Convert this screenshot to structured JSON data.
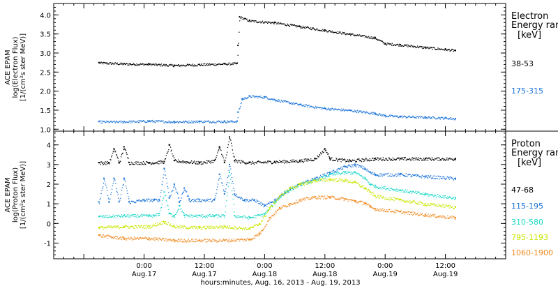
{
  "xaxis": {
    "title": "hours:minutes, Aug. 16, 2013 - Aug. 19, 2013",
    "ticks": [
      {
        "t": 24,
        "time": "0:00",
        "date": "Aug.17"
      },
      {
        "t": 36,
        "time": "12:00",
        "date": "Aug.17"
      },
      {
        "t": 48,
        "time": "0:00",
        "date": "Aug.18"
      },
      {
        "t": 60,
        "time": "12:00",
        "date": "Aug.18"
      },
      {
        "t": 72,
        "time": "0:00",
        "date": "Aug.19"
      },
      {
        "t": 84,
        "time": "12:00",
        "date": "Aug.19"
      }
    ]
  },
  "chart_data": [
    {
      "type": "scatter",
      "panel": "electron",
      "ylabel": [
        "ACE EPAM",
        "log(Electron Flux)",
        "[1/(cm²s ster MeV)]"
      ],
      "ylim": [
        0.95,
        4.3
      ],
      "yticks": [
        1.0,
        1.5,
        2.0,
        2.5,
        3.0,
        3.5,
        4.0
      ],
      "ytick_labels": [
        "1.0",
        "1.5",
        "2.0",
        "2.5",
        "3.0",
        "3.5",
        "4.0"
      ],
      "legend_title": [
        "Electron",
        "Energy ran",
        "[keV]"
      ],
      "series": [
        {
          "name": "38-53",
          "color": "#000000",
          "points": [
            [
              15,
              2.75
            ],
            [
              20,
              2.72
            ],
            [
              25,
              2.71
            ],
            [
              30,
              2.68
            ],
            [
              35,
              2.7
            ],
            [
              40,
              2.72
            ],
            [
              42.5,
              2.73
            ],
            [
              42.7,
              3.2
            ],
            [
              43,
              3.95
            ],
            [
              45,
              3.85
            ],
            [
              50,
              3.8
            ],
            [
              55,
              3.7
            ],
            [
              60,
              3.6
            ],
            [
              65,
              3.5
            ],
            [
              70,
              3.4
            ],
            [
              72,
              3.25
            ],
            [
              75,
              3.22
            ],
            [
              80,
              3.15
            ],
            [
              84,
              3.1
            ],
            [
              86,
              3.07
            ]
          ]
        },
        {
          "name": "175-315",
          "color": "#1a73d9",
          "points": [
            [
              15,
              1.2
            ],
            [
              20,
              1.2
            ],
            [
              25,
              1.22
            ],
            [
              30,
              1.2
            ],
            [
              35,
              1.21
            ],
            [
              40,
              1.21
            ],
            [
              42.5,
              1.21
            ],
            [
              42.7,
              1.45
            ],
            [
              43.5,
              1.8
            ],
            [
              45,
              1.87
            ],
            [
              48,
              1.85
            ],
            [
              50,
              1.78
            ],
            [
              55,
              1.65
            ],
            [
              60,
              1.55
            ],
            [
              65,
              1.5
            ],
            [
              70,
              1.42
            ],
            [
              72,
              1.36
            ],
            [
              75,
              1.34
            ],
            [
              80,
              1.32
            ],
            [
              84,
              1.3
            ],
            [
              86,
              1.28
            ]
          ]
        }
      ]
    },
    {
      "type": "scatter",
      "panel": "proton",
      "ylabel": [
        "ACE EPAM",
        "log(Proton Flux)",
        "[1/(cm²s ster MeV)]"
      ],
      "ylim": [
        -1.8,
        4.7
      ],
      "yticks": [
        -1,
        0,
        1,
        2,
        3,
        4
      ],
      "ytick_labels": [
        "-1",
        "0",
        "1",
        "2",
        "3",
        "4"
      ],
      "legend_title": [
        "Proton",
        "Energy ran",
        "[keV]"
      ],
      "series": [
        {
          "name": "47-68",
          "color": "#000000",
          "points": [
            [
              15,
              3.1
            ],
            [
              17,
              3.1
            ],
            [
              18,
              3.8
            ],
            [
              19,
              3.1
            ],
            [
              20,
              3.9
            ],
            [
              21,
              3.1
            ],
            [
              25,
              3.1
            ],
            [
              28,
              3.15
            ],
            [
              29,
              4.0
            ],
            [
              30,
              3.2
            ],
            [
              35,
              3.1
            ],
            [
              38,
              3.2
            ],
            [
              39,
              3.9
            ],
            [
              40,
              3.1
            ],
            [
              41,
              4.4
            ],
            [
              42,
              3.2
            ],
            [
              45,
              3.1
            ],
            [
              50,
              3.15
            ],
            [
              55,
              3.2
            ],
            [
              58,
              3.3
            ],
            [
              60,
              3.8
            ],
            [
              61,
              3.3
            ],
            [
              65,
              3.2
            ],
            [
              70,
              3.3
            ],
            [
              75,
              3.3
            ],
            [
              80,
              3.3
            ],
            [
              86,
              3.3
            ]
          ]
        },
        {
          "name": "115-195",
          "color": "#1a73d9",
          "points": [
            [
              15,
              1.1
            ],
            [
              16,
              2.3
            ],
            [
              17,
              1.1
            ],
            [
              18,
              2.3
            ],
            [
              19,
              1.1
            ],
            [
              20,
              2.3
            ],
            [
              21,
              1.1
            ],
            [
              24,
              1.2
            ],
            [
              26,
              1.2
            ],
            [
              27,
              1.2
            ],
            [
              28,
              2.8
            ],
            [
              29,
              1.3
            ],
            [
              30,
              2.0
            ],
            [
              31,
              1.1
            ],
            [
              32,
              1.8
            ],
            [
              33,
              1.2
            ],
            [
              35,
              1.2
            ],
            [
              38,
              1.2
            ],
            [
              39,
              2.5
            ],
            [
              40,
              1.5
            ],
            [
              41,
              3.0
            ],
            [
              42,
              1.5
            ],
            [
              44,
              1.2
            ],
            [
              46,
              1.2
            ],
            [
              48,
              0.9
            ],
            [
              50,
              1.2
            ],
            [
              52,
              1.6
            ],
            [
              55,
              2.0
            ],
            [
              58,
              2.3
            ],
            [
              61,
              2.6
            ],
            [
              64,
              2.9
            ],
            [
              66,
              3.0
            ],
            [
              68,
              2.8
            ],
            [
              69,
              2.6
            ],
            [
              70,
              2.5
            ],
            [
              75,
              2.5
            ],
            [
              80,
              2.4
            ],
            [
              86,
              2.3
            ]
          ]
        },
        {
          "name": "310-580",
          "color": "#20d8c8",
          "points": [
            [
              15,
              0.35
            ],
            [
              20,
              0.4
            ],
            [
              25,
              0.4
            ],
            [
              26,
              0.4
            ],
            [
              27,
              0.5
            ],
            [
              28,
              1.6
            ],
            [
              29,
              0.5
            ],
            [
              30,
              0.4
            ],
            [
              31,
              0.9
            ],
            [
              32,
              0.4
            ],
            [
              35,
              0.4
            ],
            [
              38,
              0.4
            ],
            [
              40,
              0.4
            ],
            [
              41,
              2.6
            ],
            [
              42,
              0.4
            ],
            [
              45,
              0.3
            ],
            [
              48,
              0.5
            ],
            [
              50,
              1.1
            ],
            [
              52,
              1.6
            ],
            [
              55,
              2.0
            ],
            [
              58,
              2.2
            ],
            [
              61,
              2.5
            ],
            [
              64,
              2.6
            ],
            [
              66,
              2.6
            ],
            [
              68,
              2.3
            ],
            [
              69,
              2.0
            ],
            [
              70,
              1.9
            ],
            [
              75,
              1.7
            ],
            [
              80,
              1.5
            ],
            [
              86,
              1.3
            ]
          ]
        },
        {
          "name": "795-1193",
          "color": "#c8e600",
          "points": [
            [
              15,
              -0.2
            ],
            [
              20,
              -0.15
            ],
            [
              25,
              -0.15
            ],
            [
              28,
              0.1
            ],
            [
              30,
              -0.15
            ],
            [
              35,
              -0.2
            ],
            [
              40,
              -0.15
            ],
            [
              45,
              -0.25
            ],
            [
              47,
              0.0
            ],
            [
              49,
              0.8
            ],
            [
              51,
              1.4
            ],
            [
              53,
              1.8
            ],
            [
              55,
              2.0
            ],
            [
              58,
              2.2
            ],
            [
              61,
              2.25
            ],
            [
              64,
              2.2
            ],
            [
              66,
              2.1
            ],
            [
              68,
              1.8
            ],
            [
              69,
              1.6
            ],
            [
              70,
              1.4
            ],
            [
              75,
              1.2
            ],
            [
              80,
              1.0
            ],
            [
              86,
              0.85
            ]
          ]
        },
        {
          "name": "1060-1900",
          "color": "#f08a20",
          "points": [
            [
              15,
              -0.6
            ],
            [
              20,
              -0.75
            ],
            [
              25,
              -0.75
            ],
            [
              30,
              -0.85
            ],
            [
              35,
              -0.85
            ],
            [
              40,
              -0.85
            ],
            [
              45,
              -0.8
            ],
            [
              47,
              -0.5
            ],
            [
              49,
              0.3
            ],
            [
              51,
              0.8
            ],
            [
              53,
              1.0
            ],
            [
              55,
              1.2
            ],
            [
              58,
              1.35
            ],
            [
              61,
              1.35
            ],
            [
              64,
              1.25
            ],
            [
              66,
              1.15
            ],
            [
              68,
              1.05
            ],
            [
              69,
              0.85
            ],
            [
              70,
              0.75
            ],
            [
              75,
              0.6
            ],
            [
              80,
              0.45
            ],
            [
              86,
              0.3
            ]
          ]
        }
      ]
    }
  ]
}
